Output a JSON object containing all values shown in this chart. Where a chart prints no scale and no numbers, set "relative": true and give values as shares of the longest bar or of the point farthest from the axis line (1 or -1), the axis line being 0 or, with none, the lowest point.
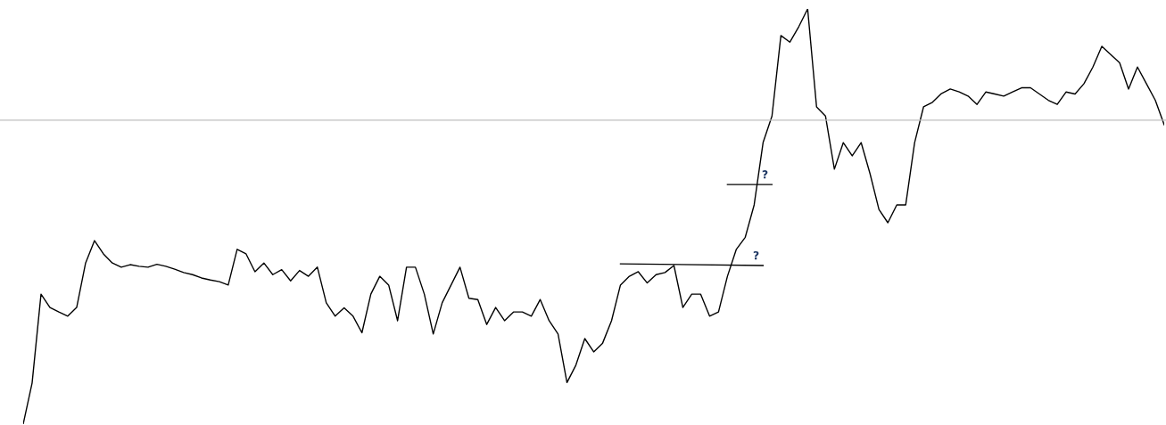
{
  "chart_data": {
    "type": "line",
    "relative": true,
    "legend": false,
    "marker": "none",
    "line_style": "solid",
    "categories": [
      null,
      null,
      null,
      null,
      null,
      null,
      null,
      null,
      null,
      null,
      null,
      null,
      null,
      null,
      null,
      null,
      null,
      null,
      null,
      null,
      null,
      null,
      null,
      null,
      null,
      null,
      null,
      null,
      null,
      null,
      null,
      null,
      null,
      null,
      null,
      null,
      null,
      null,
      null,
      null,
      null,
      null,
      null,
      null,
      null,
      null,
      null,
      null,
      null,
      null,
      null,
      null,
      null,
      null,
      null,
      null,
      null,
      null,
      null,
      null,
      null,
      null,
      null,
      null,
      null,
      null,
      null,
      null,
      null,
      null,
      null,
      null,
      null,
      null,
      null,
      null,
      null,
      null,
      null,
      null,
      null,
      null,
      null,
      null,
      null,
      null,
      null,
      null,
      null,
      null,
      null,
      null,
      null,
      null,
      null,
      null,
      null,
      null,
      null,
      null,
      null,
      null,
      null,
      null,
      null,
      null,
      null,
      null,
      null,
      null,
      null,
      null,
      null,
      null,
      null,
      null,
      null,
      null,
      null,
      null,
      null,
      null,
      null,
      null,
      null,
      null,
      null,
      null,
      null
    ],
    "series": [
      {
        "color": "#000000",
        "values": [
          0,
          0.099,
          0.313,
          0.281,
          0.27,
          0.26,
          0.281,
          0.388,
          0.442,
          0.41,
          0.388,
          0.378,
          0.384,
          0.38,
          0.378,
          0.385,
          0.38,
          0.373,
          0.365,
          0.36,
          0.352,
          0.347,
          0.343,
          0.335,
          0.421,
          0.41,
          0.367,
          0.388,
          0.36,
          0.372,
          0.345,
          0.37,
          0.356,
          0.378,
          0.292,
          0.26,
          0.28,
          0.26,
          0.22,
          0.313,
          0.356,
          0.335,
          0.249,
          0.378,
          0.378,
          0.313,
          0.217,
          0.292,
          0.335,
          0.378,
          0.303,
          0.3,
          0.24,
          0.281,
          0.249,
          0.27,
          0.27,
          0.26,
          0.3,
          0.249,
          0.217,
          0.1,
          0.142,
          0.206,
          0.174,
          0.195,
          0.249,
          0.335,
          0.356,
          0.367,
          0.34,
          0.36,
          0.365,
          0.382,
          0.281,
          0.313,
          0.313,
          0.26,
          0.27,
          0.356,
          0.421,
          0.45,
          0.528,
          0.678,
          0.742,
          0.936,
          0.92,
          0.957,
          1.0,
          0.764,
          0.742,
          0.614,
          0.678,
          0.646,
          0.678,
          0.603,
          0.517,
          0.485,
          0.528,
          0.528,
          0.678,
          0.764,
          0.775,
          0.796,
          0.807,
          0.8,
          0.79,
          0.77,
          0.8,
          0.795,
          0.79,
          0.8,
          0.81,
          0.81,
          0.795,
          0.78,
          0.77,
          0.8,
          0.795,
          0.82,
          0.86,
          0.91,
          0.89,
          0.87,
          0.807,
          0.86,
          0.82,
          0.78,
          0.721
        ]
      },
      {
        "color": "#000000",
        "values": [
          null,
          null,
          null,
          null,
          null,
          null,
          null,
          null,
          null,
          null,
          null,
          null,
          null,
          null,
          null,
          null,
          null,
          null,
          null,
          null,
          null,
          null,
          null,
          null,
          null,
          null,
          null,
          null,
          null,
          null,
          null,
          null,
          null,
          null,
          null,
          null,
          null,
          null,
          null,
          null,
          null,
          null,
          null,
          null,
          null,
          null,
          null,
          null,
          null,
          null,
          null,
          null,
          null,
          null,
          null,
          null,
          null,
          null,
          null,
          null,
          null,
          null,
          null,
          null,
          null,
          null,
          null,
          0.386,
          null,
          null,
          null,
          null,
          null,
          null,
          null,
          null,
          null,
          null,
          null,
          null,
          null,
          null,
          null,
          0.382,
          null,
          null,
          null,
          null,
          null,
          null,
          null,
          null,
          null,
          null,
          null,
          null,
          null,
          null,
          null,
          null,
          null,
          null,
          null,
          null,
          null,
          null,
          null,
          null,
          null,
          null,
          null,
          null,
          null,
          null,
          null,
          null,
          null,
          null,
          null,
          null,
          null,
          null,
          null,
          null,
          null,
          null,
          null,
          null,
          null
        ]
      },
      {
        "color": "#000000",
        "values": [
          null,
          null,
          null,
          null,
          null,
          null,
          null,
          null,
          null,
          null,
          null,
          null,
          null,
          null,
          null,
          null,
          null,
          null,
          null,
          null,
          null,
          null,
          null,
          null,
          null,
          null,
          null,
          null,
          null,
          null,
          null,
          null,
          null,
          null,
          null,
          null,
          null,
          null,
          null,
          null,
          null,
          null,
          null,
          null,
          null,
          null,
          null,
          null,
          null,
          null,
          null,
          null,
          null,
          null,
          null,
          null,
          null,
          null,
          null,
          null,
          null,
          null,
          null,
          null,
          null,
          null,
          null,
          null,
          null,
          null,
          null,
          null,
          null,
          null,
          null,
          null,
          null,
          null,
          null,
          0.577,
          null,
          null,
          null,
          null,
          0.577,
          null,
          null,
          null,
          null,
          null,
          null,
          null,
          null,
          null,
          null,
          null,
          null,
          null,
          null,
          null,
          null,
          null,
          null,
          null,
          null,
          null,
          null,
          null,
          null,
          null,
          null,
          null,
          null,
          null,
          null,
          null,
          null,
          null,
          null,
          null,
          null,
          null,
          null,
          null,
          null,
          null,
          null,
          null,
          null
        ]
      }
    ],
    "ref_lines": [
      {
        "axis": "y",
        "value": 0.732,
        "color": "#c0c0c0"
      }
    ],
    "annotations": [
      "?",
      "?"
    ]
  }
}
